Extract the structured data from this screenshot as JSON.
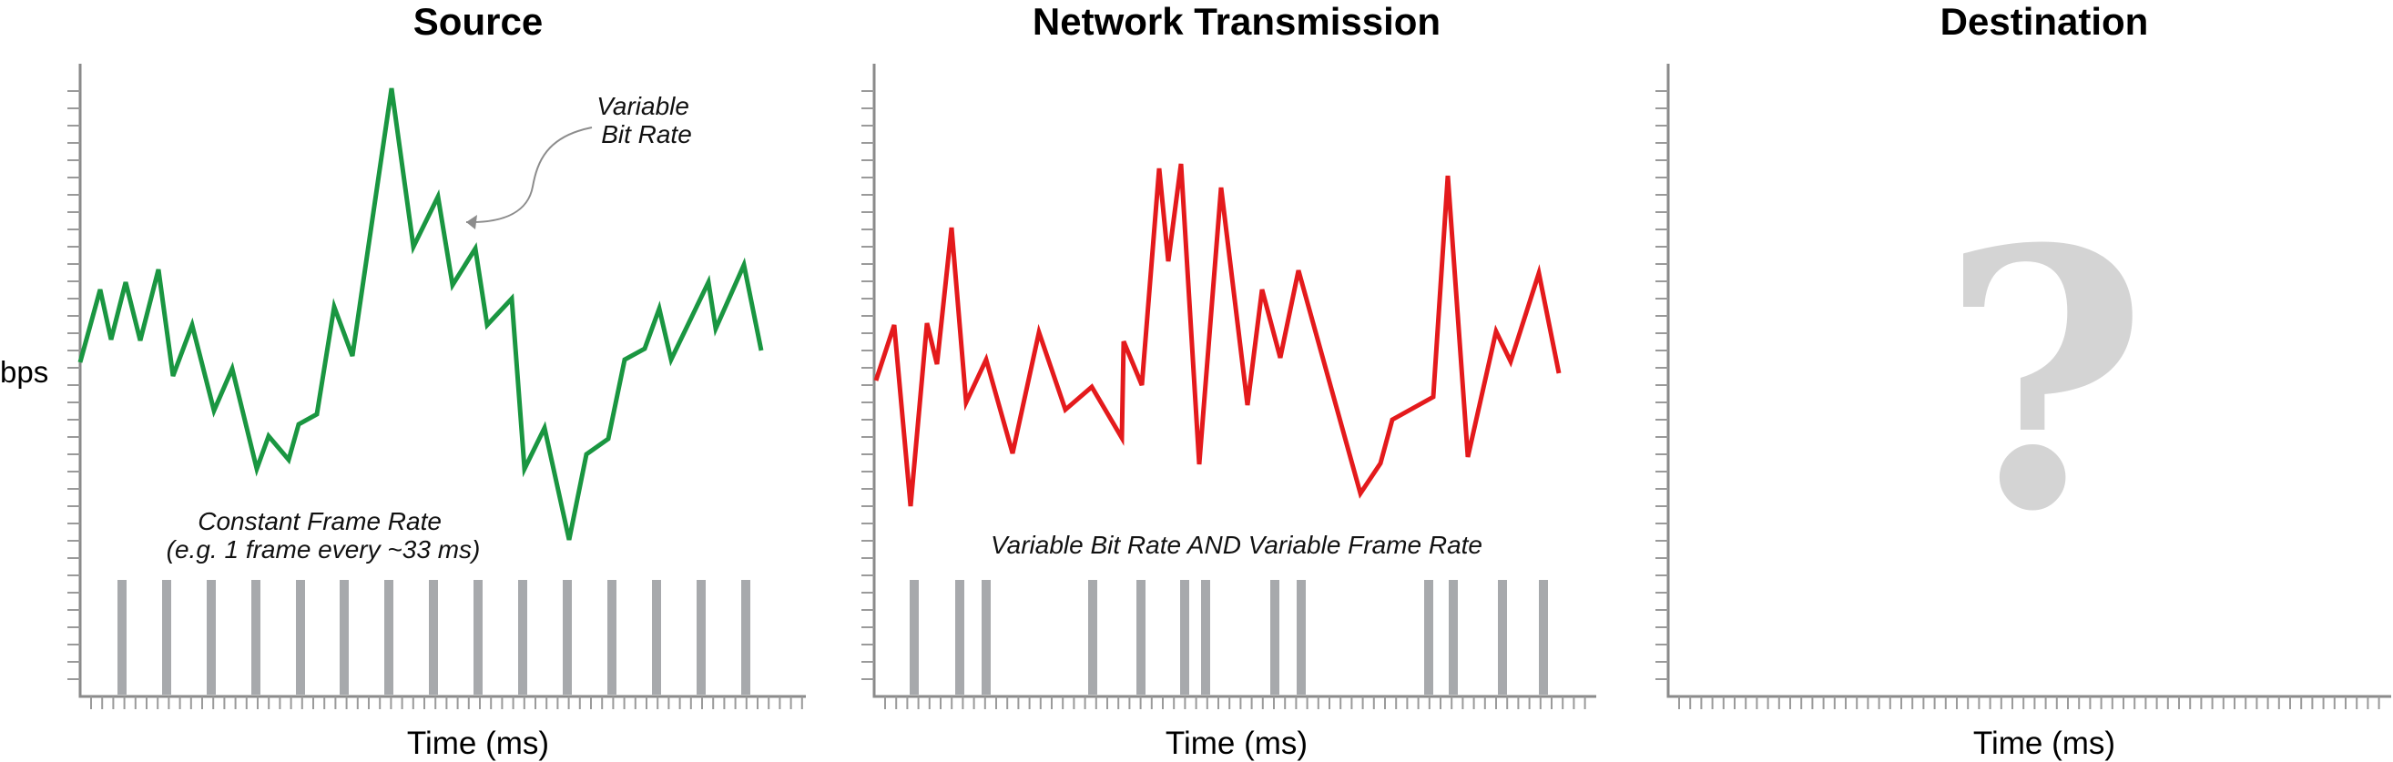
{
  "panels": [
    {
      "title": "Source",
      "xlabel": "Time (ms)",
      "ylabel": "bps",
      "curve_color": "#1a9641",
      "annotations": [
        {
          "lines": [
            "Variable",
            "Bit Rate"
          ]
        },
        {
          "lines": [
            "Constant Frame Rate",
            "(e.g. 1 frame every ~33 ms)"
          ]
        }
      ]
    },
    {
      "title": "Network Transmission",
      "xlabel": "Time (ms)",
      "curve_color": "#e41a1c",
      "annotations": [
        {
          "lines": [
            "Variable Bit Rate AND Variable Frame Rate"
          ]
        }
      ]
    },
    {
      "title": "Destination",
      "xlabel": "Time (ms)",
      "symbol": "?"
    }
  ]
}
